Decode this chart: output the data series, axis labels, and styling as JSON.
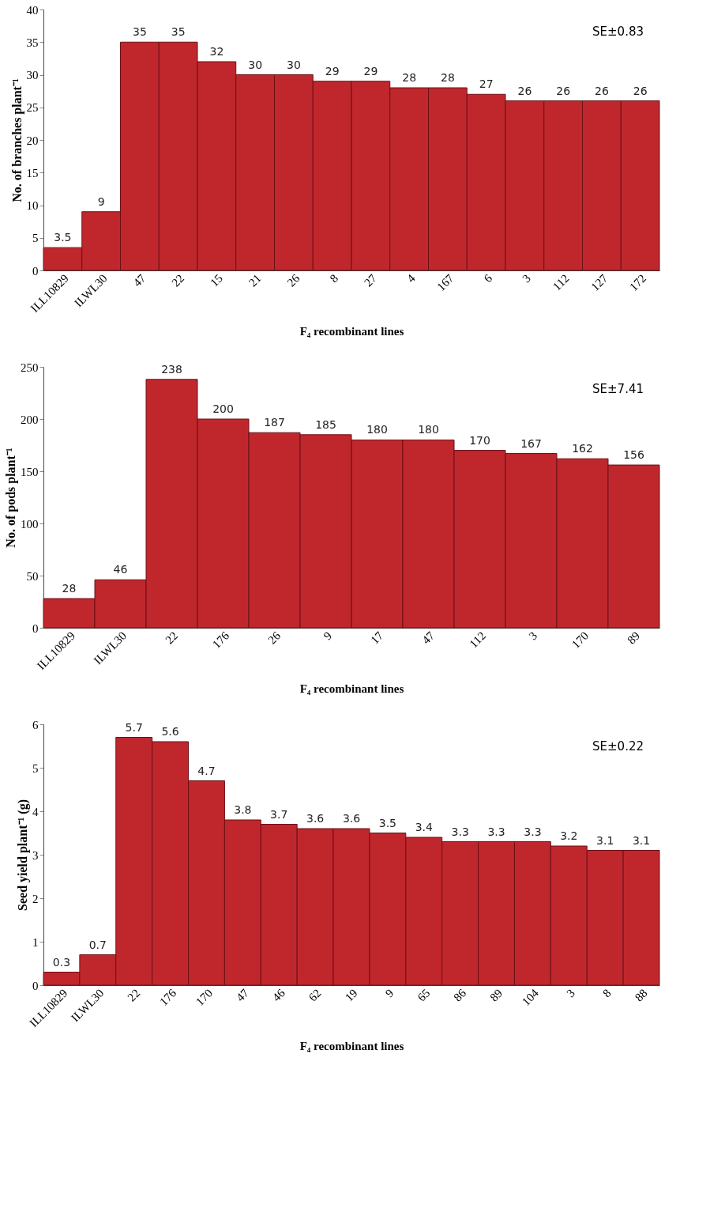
{
  "chart_data": [
    {
      "type": "bar",
      "xlabel": "F₄ recombinant lines",
      "ylabel": "No. of branches plant⁻¹",
      "categories": [
        "ILL10829",
        "ILWL30",
        "47",
        "22",
        "15",
        "21",
        "26",
        "8",
        "27",
        "4",
        "167",
        "6",
        "3",
        "112",
        "127",
        "172"
      ],
      "values": [
        3.5,
        9,
        35,
        35,
        32,
        30,
        30,
        29,
        29,
        28,
        28,
        27,
        26,
        26,
        26,
        26
      ],
      "color": "#c0272d",
      "ylim": [
        0,
        40
      ],
      "yticks": [
        0,
        5,
        10,
        15,
        20,
        25,
        30,
        35,
        40
      ],
      "data_labels": true,
      "annotations": [
        "SE±0.83"
      ]
    },
    {
      "type": "bar",
      "xlabel": "F₄ recombinant lines",
      "ylabel": "No. of pods plant⁻¹",
      "categories": [
        "ILL10829",
        "ILWL30",
        "22",
        "176",
        "26",
        "9",
        "17",
        "47",
        "112",
        "3",
        "170",
        "89"
      ],
      "values": [
        28,
        46,
        238,
        200,
        187,
        185,
        180,
        180,
        170,
        167,
        162,
        156
      ],
      "color": "#c0272d",
      "ylim": [
        0,
        250
      ],
      "yticks": [
        0,
        50,
        100,
        150,
        200,
        250
      ],
      "data_labels": true,
      "annotations": [
        "SE±7.41"
      ]
    },
    {
      "type": "bar",
      "xlabel": "F₄ recombinant lines",
      "ylabel": "Seed yield plant⁻¹ (g)",
      "categories": [
        "ILL10829",
        "ILWL30",
        "22",
        "176",
        "170",
        "47",
        "46",
        "62",
        "19",
        "9",
        "65",
        "86",
        "89",
        "104",
        "3",
        "8",
        "88"
      ],
      "values": [
        0.3,
        0.7,
        5.7,
        5.6,
        4.7,
        3.8,
        3.7,
        3.6,
        3.6,
        3.5,
        3.4,
        3.3,
        3.3,
        3.3,
        3.2,
        3.1,
        3.1
      ],
      "color": "#c0272d",
      "ylim": [
        0,
        6
      ],
      "yticks": [
        0,
        1,
        2,
        3,
        4,
        5,
        6
      ],
      "data_labels": true,
      "annotations": [
        "SE±0.22"
      ]
    }
  ]
}
